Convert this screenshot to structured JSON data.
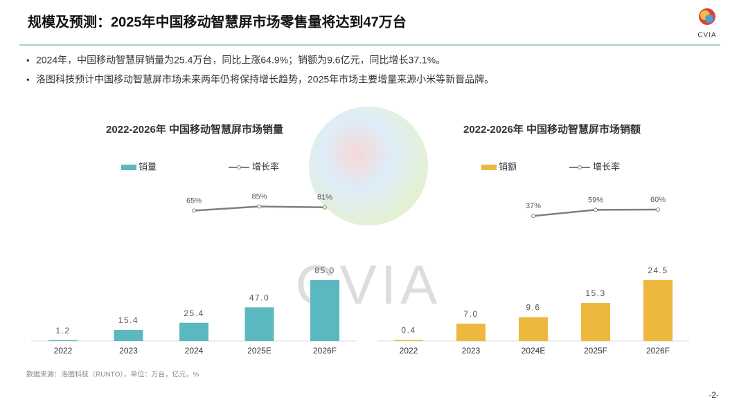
{
  "title": "规模及预测：2025年中国移动智慧屏市场零售量将达到47万台",
  "logo_text": "CVIA",
  "bullets": [
    "2024年，中国移动智慧屏销量为25.4万台，同比上涨64.9%；销额为9.6亿元，同比增长37.1%。",
    "洛图科技预计中国移动智慧屏市场未来两年仍将保持增长趋势，2025年市场主要增量来源小米等新晋品牌。"
  ],
  "watermark": "CVIA",
  "source": "数据来源：洛图科技（RUNTO），单位：万台，亿元，%",
  "page_number": "-2-",
  "chart_data": [
    {
      "type": "bar",
      "title": "2022-2026年 中国移动智慧屏市场销量",
      "categories": [
        "2022",
        "2023",
        "2024",
        "2025E",
        "2026F"
      ],
      "series": [
        {
          "name": "销量",
          "color": "#5bb8c0",
          "values": [
            1.2,
            15.4,
            25.4,
            47.0,
            85.0
          ],
          "value_labels": [
            "1.2",
            "15.4",
            "25.4",
            "47.0",
            "85.0"
          ]
        },
        {
          "name": "增长率",
          "color": "#7f7f7f",
          "axis": "y2",
          "values": [
            null,
            null,
            65,
            85,
            81
          ],
          "value_labels": [
            null,
            null,
            "65%",
            "85%",
            "81%"
          ]
        }
      ]
    },
    {
      "type": "bar",
      "title": "2022-2026年 中国移动智慧屏市场销额",
      "categories": [
        "2022",
        "2023",
        "2024E",
        "2025F",
        "2026F"
      ],
      "series": [
        {
          "name": "销额",
          "color": "#edb83d",
          "values": [
            0.4,
            7.0,
            9.6,
            15.3,
            24.5
          ],
          "value_labels": [
            "0.4",
            "7.0",
            "9.6",
            "15.3",
            "24.5"
          ]
        },
        {
          "name": "增长率",
          "color": "#7f7f7f",
          "axis": "y2",
          "values": [
            null,
            null,
            37,
            59,
            60
          ],
          "value_labels": [
            null,
            null,
            "37%",
            "59%",
            "60%"
          ]
        }
      ]
    }
  ]
}
